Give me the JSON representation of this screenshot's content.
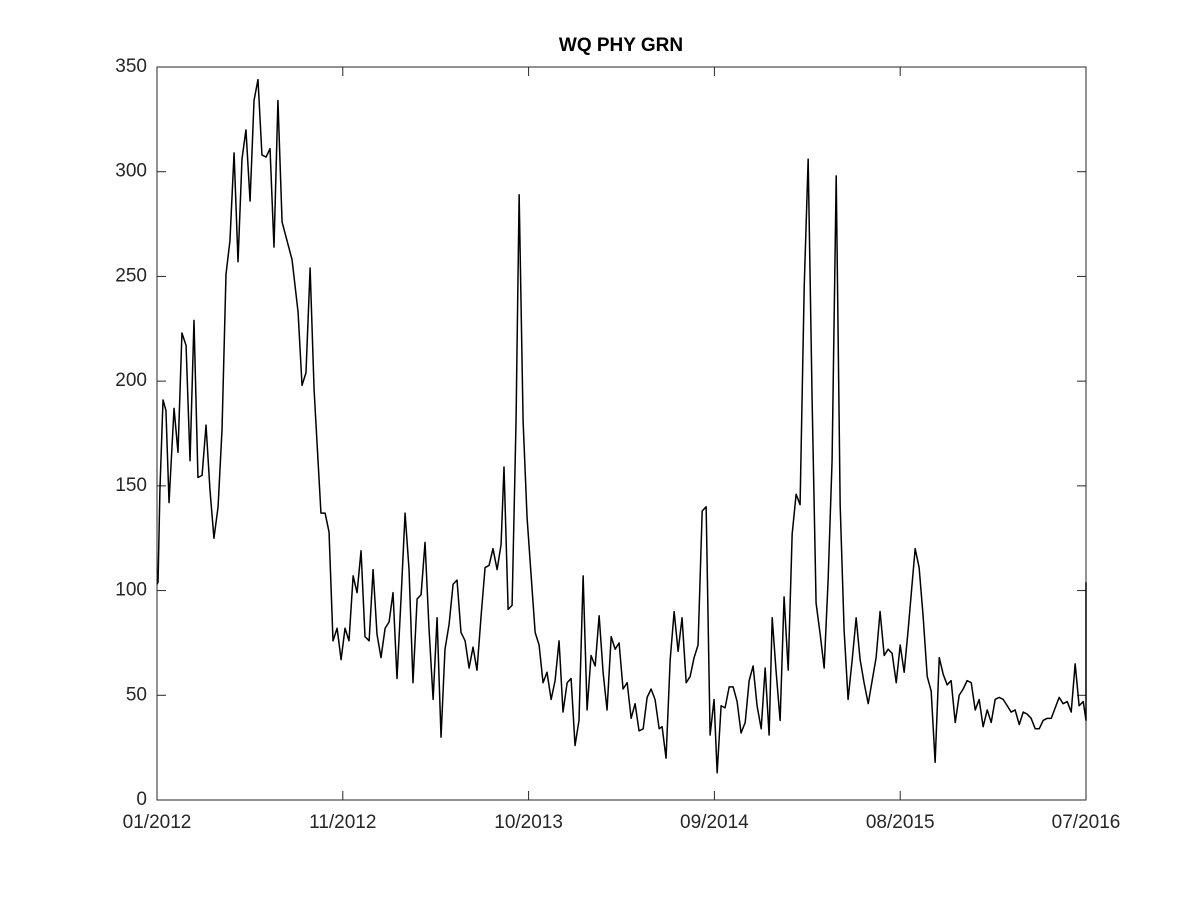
{
  "chart_data": {
    "type": "line",
    "title": "WQ PHY GRN",
    "x": [
      0,
      0.06,
      0.17,
      0.35,
      0.52,
      0.7,
      0.99,
      1.22,
      1.45,
      1.69,
      1.92,
      2.15,
      2.38,
      2.62,
      2.85,
      3.08,
      3.31,
      3.55,
      3.78,
      4.01,
      4.24,
      4.48,
      4.71,
      4.94,
      5.17,
      5.41,
      5.64,
      5.87,
      6.1,
      6.34,
      6.57,
      6.8,
      7.03,
      7.27,
      7.85,
      8.2,
      8.43,
      8.66,
      8.9,
      9.13,
      9.36,
      9.53,
      9.77,
      10.0,
      10.23,
      10.47,
      10.7,
      10.93,
      11.16,
      11.4,
      11.63,
      11.86,
      12.09,
      12.33,
      12.56,
      12.79,
      13.02,
      13.26,
      13.49,
      13.72,
      13.95,
      14.19,
      14.42,
      14.65,
      14.88,
      15.12,
      15.35,
      15.58,
      15.81,
      16.05,
      16.28,
      16.51,
      16.74,
      16.98,
      17.21,
      17.44,
      17.67,
      17.91,
      18.14,
      18.37,
      18.6,
      18.84,
      19.07,
      19.3,
      19.53,
      19.77,
      20.0,
      20.17,
      20.41,
      20.64,
      20.87,
      21.05,
      21.28,
      21.51,
      21.74,
      21.98,
      22.21,
      22.44,
      22.67,
      22.91,
      23.14,
      23.37,
      23.6,
      23.84,
      24.07,
      24.3,
      24.53,
      24.77,
      25.0,
      25.23,
      25.47,
      25.7,
      25.93,
      26.16,
      26.4,
      26.63,
      26.86,
      27.09,
      27.33,
      27.56,
      27.79,
      28.02,
      28.26,
      28.49,
      28.72,
      28.95,
      29.19,
      29.36,
      29.59,
      29.83,
      30.06,
      30.29,
      30.52,
      30.76,
      30.99,
      31.22,
      31.45,
      31.69,
      31.92,
      32.15,
      32.38,
      32.56,
      32.79,
      33.02,
      33.26,
      33.49,
      33.72,
      33.95,
      34.19,
      34.42,
      34.65,
      34.88,
      35.12,
      35.35,
      35.58,
      35.76,
      35.99,
      36.22,
      36.45,
      36.69,
      36.92,
      37.15,
      37.38,
      37.62,
      37.85,
      38.08,
      38.31,
      38.55,
      38.78,
      39.01,
      39.24,
      39.48,
      39.71,
      39.94,
      40.17,
      40.41,
      40.64,
      40.87,
      41.1,
      41.34,
      41.57,
      41.8,
      42.03,
      42.27,
      42.5,
      42.73,
      42.97,
      43.2,
      43.43,
      43.66,
      43.9,
      44.07,
      44.3,
      44.53,
      44.77,
      45.0,
      45.23,
      45.47,
      45.7,
      45.93,
      46.16,
      46.4,
      46.63,
      46.86,
      47.09,
      47.33,
      47.56,
      47.79,
      48.02,
      48.26,
      48.49,
      48.72,
      48.95,
      49.19,
      49.42,
      49.65,
      49.88,
      50.12,
      50.35,
      50.58,
      50.81,
      51.05,
      51.28,
      51.51,
      51.74,
      51.98,
      52.21,
      52.44,
      52.67,
      52.91,
      53.14,
      53.37,
      53.6,
      53.84,
      54,
      54
    ],
    "series": [
      {
        "color": "#000000",
        "values": [
          103,
          104,
          148,
          191,
          186,
          142,
          187,
          166,
          223,
          217,
          162,
          229,
          154,
          155,
          179,
          148,
          125,
          140,
          177,
          251,
          267,
          309,
          257,
          306,
          320,
          286,
          334,
          344,
          308,
          307,
          311,
          264,
          334,
          276,
          258,
          233,
          198,
          204,
          254,
          196,
          162,
          137,
          137,
          128,
          76,
          82,
          67,
          82,
          76,
          107,
          99,
          119,
          78,
          76,
          110,
          79,
          68,
          82,
          85,
          99,
          58,
          97,
          137,
          110,
          56,
          96,
          98,
          123,
          82,
          48,
          87,
          30,
          72,
          84,
          103,
          105,
          80,
          76,
          63,
          73,
          62,
          88,
          111,
          112,
          120,
          110,
          122,
          159,
          91,
          93,
          181,
          289,
          181,
          135,
          108,
          80,
          74,
          56,
          61,
          48,
          57,
          76,
          42,
          56,
          58,
          26,
          38,
          107,
          43,
          69,
          64,
          88,
          61,
          43,
          78,
          72,
          75,
          53,
          56,
          39,
          46,
          33,
          34,
          49,
          53,
          48,
          34,
          35,
          20,
          67,
          90,
          71,
          87,
          56,
          59,
          68,
          74,
          138,
          140,
          31,
          48,
          13,
          45,
          44,
          54,
          54,
          47,
          32,
          37,
          57,
          64,
          45,
          34,
          63,
          31,
          87,
          61,
          38,
          97,
          62,
          127,
          146,
          141,
          245,
          306,
          191,
          94,
          79,
          63,
          105,
          162,
          298,
          141,
          81,
          48,
          67,
          87,
          67,
          56,
          46,
          57,
          68,
          90,
          69,
          72,
          70,
          56,
          74,
          61,
          81,
          104,
          120,
          111,
          88,
          59,
          52,
          18,
          68,
          60,
          55,
          57,
          37,
          50,
          53,
          57,
          56,
          43,
          48,
          35,
          43,
          37,
          48,
          49,
          48,
          45,
          42,
          43,
          36,
          42,
          41,
          39,
          34,
          34,
          38,
          39,
          39,
          44,
          49,
          46,
          47,
          42,
          65,
          45,
          47,
          38,
          104
        ]
      }
    ],
    "xlim": [
      0,
      54
    ],
    "xticks": [
      {
        "value": 0,
        "label": "01/2012"
      },
      {
        "value": 10.8,
        "label": "11/2012"
      },
      {
        "value": 21.6,
        "label": "10/2013"
      },
      {
        "value": 32.4,
        "label": "09/2014"
      },
      {
        "value": 43.2,
        "label": "08/2015"
      },
      {
        "value": 54,
        "label": "07/2016"
      }
    ],
    "ylim": [
      0,
      350
    ],
    "yticks": [
      0,
      50,
      100,
      150,
      200,
      250,
      300,
      350
    ],
    "grid": false
  }
}
